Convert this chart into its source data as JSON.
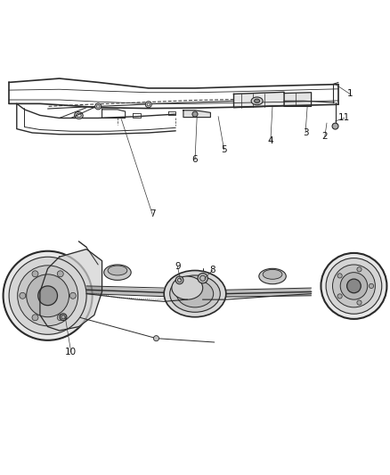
{
  "title": "",
  "background_color": "#ffffff",
  "line_color": "#2a2a2a",
  "line_width": 0.8,
  "figsize": [
    4.38,
    5.33
  ],
  "dpi": 100,
  "callout_data": [
    [
      1,
      0.9,
      0.87,
      0.862,
      0.895
    ],
    [
      2,
      0.835,
      0.76,
      0.84,
      0.795
    ],
    [
      3,
      0.785,
      0.77,
      0.79,
      0.84
    ],
    [
      4,
      0.695,
      0.75,
      0.7,
      0.84
    ],
    [
      5,
      0.575,
      0.726,
      0.56,
      0.812
    ],
    [
      6,
      0.5,
      0.7,
      0.505,
      0.81
    ],
    [
      7,
      0.39,
      0.56,
      0.31,
      0.805
    ],
    [
      8,
      0.545,
      0.415,
      0.525,
      0.395
    ],
    [
      9,
      0.455,
      0.425,
      0.462,
      0.392
    ],
    [
      10,
      0.18,
      0.205,
      0.165,
      0.295
    ],
    [
      11,
      0.885,
      0.808,
      0.862,
      0.8
    ]
  ]
}
